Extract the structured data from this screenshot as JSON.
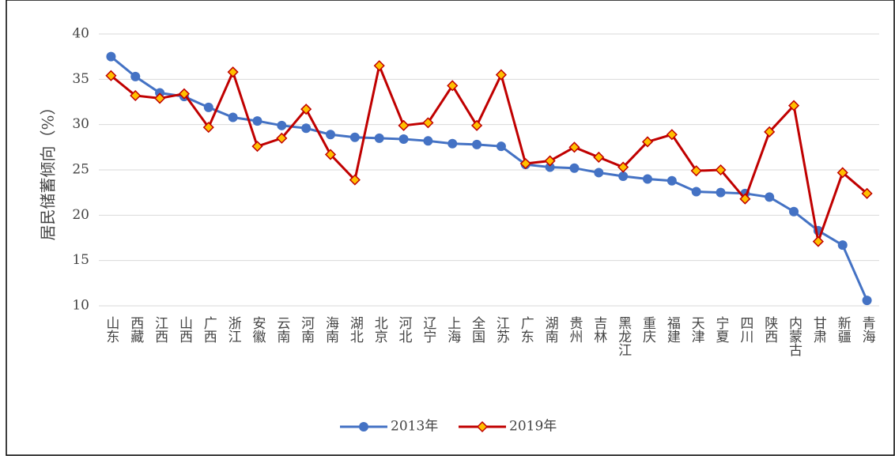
{
  "chart_data": {
    "type": "line",
    "y_label": "居民储蓄倾向（%）",
    "categories": [
      "山东",
      "西藏",
      "江西",
      "山西",
      "广西",
      "浙江",
      "安徽",
      "云南",
      "河南",
      "海南",
      "湖北",
      "北京",
      "河北",
      "辽宁",
      "上海",
      "全国",
      "江苏",
      "广东",
      "湖南",
      "贵州",
      "吉林",
      "黑龙江",
      "重庆",
      "福建",
      "天津",
      "宁夏",
      "四川",
      "陕西",
      "内蒙古",
      "甘肃",
      "新疆",
      "青海"
    ],
    "series": [
      {
        "name": "2013年",
        "color": "#4472c4",
        "marker": "circle",
        "values": [
          37.5,
          35.3,
          33.5,
          33.1,
          31.9,
          30.8,
          30.4,
          29.9,
          29.6,
          28.9,
          28.6,
          28.5,
          28.4,
          28.2,
          27.9,
          27.8,
          27.6,
          25.6,
          25.3,
          25.2,
          24.7,
          24.3,
          24.0,
          23.8,
          22.6,
          22.5,
          22.4,
          22.0,
          20.4,
          18.3,
          16.7,
          10.6
        ]
      },
      {
        "name": "2019年",
        "color": "#c00000",
        "marker": "diamond",
        "values": [
          35.4,
          33.2,
          32.9,
          33.4,
          29.7,
          35.8,
          27.6,
          28.5,
          31.7,
          26.7,
          23.9,
          36.5,
          29.9,
          30.2,
          34.3,
          29.9,
          35.5,
          25.7,
          26.0,
          27.5,
          26.4,
          25.3,
          28.1,
          28.9,
          24.9,
          25.0,
          21.8,
          29.2,
          32.1,
          17.1,
          24.7,
          22.4
        ]
      }
    ],
    "ylim": [
      10,
      40
    ],
    "yticks": [
      10,
      15,
      20,
      25,
      30,
      35,
      40
    ],
    "grid": true,
    "legend": "bottom"
  }
}
